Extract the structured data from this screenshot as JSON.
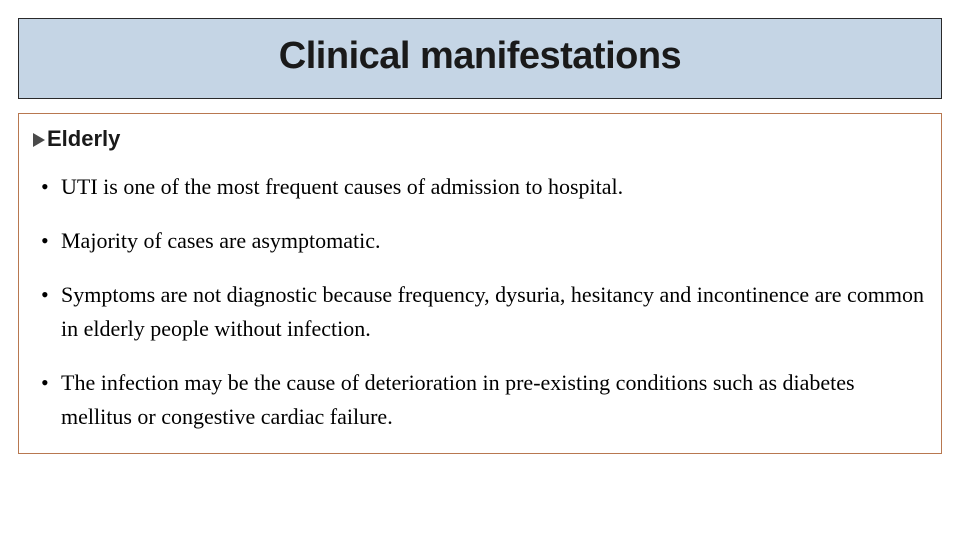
{
  "title": "Clinical manifestations",
  "subheading": "Elderly",
  "bullets": [
    "UTI is one of the most frequent causes of admission to hospital.",
    "Majority of cases are asymptomatic.",
    "Symptoms are not diagnostic because frequency, dysuria, hesitancy and incontinence are common in elderly people without infection.",
    "The infection may be the cause of deterioration in pre-existing conditions such as diabetes mellitus or congestive cardiac failure."
  ],
  "colors": {
    "title_bg": "#c5d5e5",
    "title_border": "#2a2a2a",
    "content_border": "#b87850",
    "chevron": "#4a4a4a",
    "text": "#000000"
  },
  "typography": {
    "title_font": "Arial Black / Futura",
    "title_size_pt": 30,
    "subheading_size_pt": 17,
    "body_font": "Georgia / serif",
    "body_size_pt": 17
  }
}
